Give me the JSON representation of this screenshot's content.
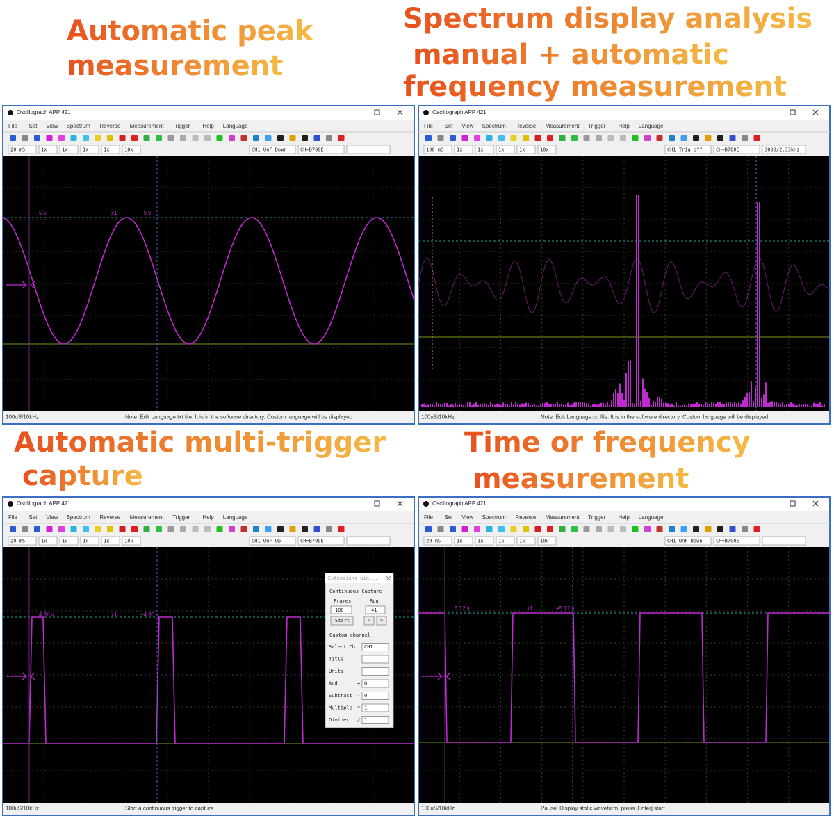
{
  "headings": [
    [
      "Automatic peak",
      "measurement"
    ],
    [
      "Spectrum display analysis",
      "manual + automatic",
      "frequency measurement"
    ],
    [
      "Automatic multi-trigger",
      "capture"
    ],
    [
      "Time or frequency",
      "measurement"
    ]
  ],
  "app": {
    "title": "Oscillograph APP 421",
    "menu": [
      "File",
      "Set",
      "View",
      "Spectrum",
      "Reverse",
      "Measurement",
      "Trigger",
      "Help",
      "Language"
    ]
  },
  "windows": [
    {
      "fields": [
        "20 mS",
        "1x",
        "1x",
        "1x",
        "1x",
        "10x",
        "CH1 UnF Down",
        "CH=B700E"
      ],
      "status": [
        "100uS/10kHz",
        "Note: Edit Language.txt file. It is in the software directory. Custom language will be displayed"
      ],
      "markers": [
        "5 v",
        "x1",
        "+5 v"
      ]
    },
    {
      "fields": [
        "100 mS",
        "1x",
        "1x",
        "1x",
        "1x",
        "10x",
        "CH1 Trig off",
        "CH=B700E",
        "3000/2.33kHz"
      ],
      "status": [
        "100uS/10kHz",
        "Note: Edit Language.txt file. It is in the software directory. Custom language will be displayed"
      ]
    },
    {
      "fields": [
        "20 mS",
        "1x",
        "1x",
        "1x",
        "1x",
        "10x",
        "CH1 UnF Up",
        "CH=B700E"
      ],
      "status": [
        "100uS/10kHz",
        "Start a continuous trigger to capture"
      ],
      "markers": [
        "4.96 v",
        "x1",
        "+4.96 v"
      ]
    },
    {
      "fields": [
        "20 mS",
        "1x",
        "1x",
        "1x",
        "1x",
        "10x",
        "CH1 UnF Down",
        "CH=B700E"
      ],
      "status": [
        "100uS/10kHz",
        "Pause! Display static waveform, press [Enter] start"
      ],
      "markers": [
        "5.12 v",
        "x1",
        "+5.12 v"
      ]
    }
  ],
  "dialog": {
    "title": "Extensions win...",
    "capture": "Continuous Capture",
    "frames_label": "Frames",
    "run_label": "Run",
    "frames": "100",
    "run": "41",
    "start": "Start",
    "prev": "<",
    "next": ">",
    "custom": "Custom channel",
    "rows": [
      {
        "label": "Select Ch",
        "value": "CH1"
      },
      {
        "label": "Title"
      },
      {
        "label": "Units"
      },
      {
        "label": "Add",
        "op": "+",
        "value": "0"
      },
      {
        "label": "Subtract",
        "op": "-",
        "value": "0"
      },
      {
        "label": "Multiple",
        "op": "*",
        "value": "1"
      },
      {
        "label": "Divider",
        "op": "/",
        "value": "1"
      }
    ]
  }
}
